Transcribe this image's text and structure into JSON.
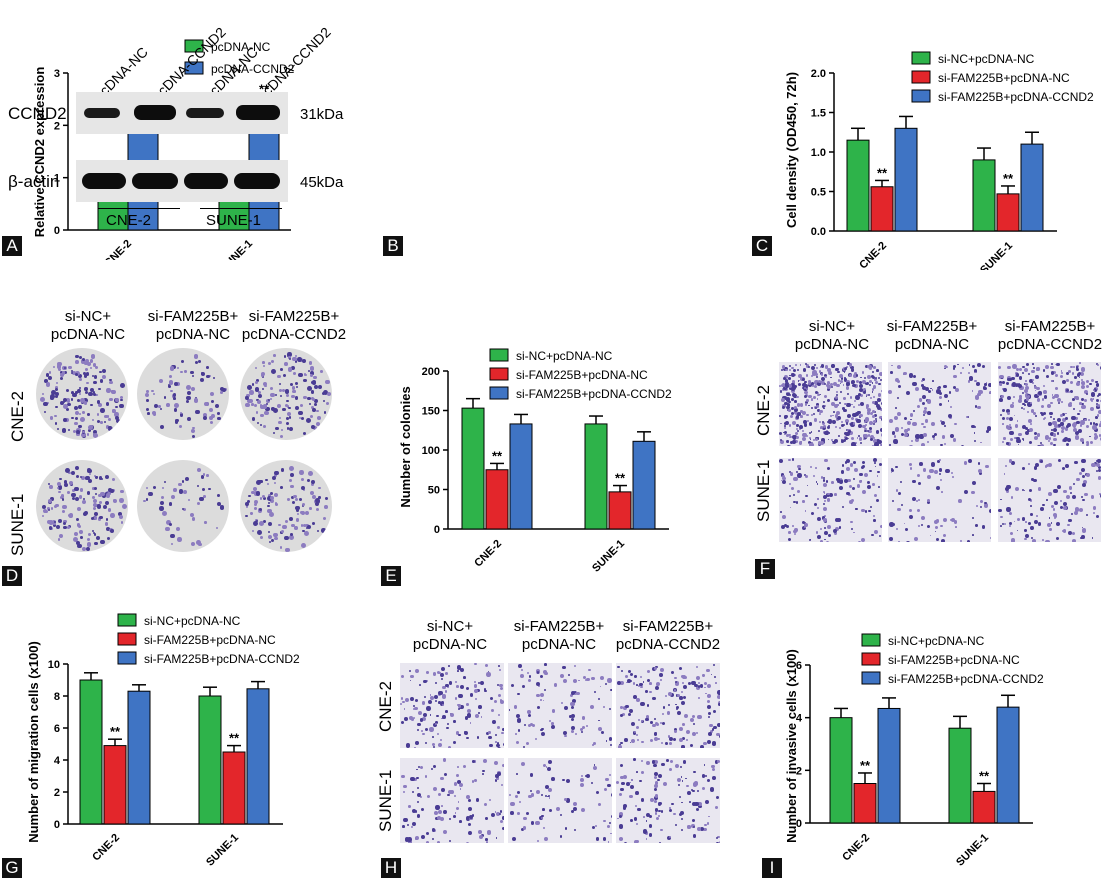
{
  "panel_labels": [
    "A",
    "B",
    "C",
    "D",
    "E",
    "F",
    "G",
    "H",
    "I"
  ],
  "colors": {
    "green": "#2eb34a",
    "blue": "#3f74c4",
    "red": "#e3262b",
    "stain": "#4a3c94",
    "stain_light": "#8c7cc0"
  },
  "chart_data": [
    {
      "type": "bar",
      "panel": "A",
      "categories": [
        "CNE-2",
        "SUNE-1"
      ],
      "series": [
        {
          "name": "pcDNA-NC",
          "values": [
            1.0,
            1.0
          ],
          "errors": [
            0.13,
            0.1
          ]
        },
        {
          "name": "pcDNA-CCND2",
          "values": [
            1.93,
            2.38
          ],
          "errors": [
            0.15,
            0.17
          ]
        }
      ],
      "ylabel": "Relative CCND2 expression",
      "ylim": [
        0,
        3
      ],
      "yticks": [
        "0",
        "1",
        "2",
        "3"
      ],
      "annotations": [
        "**",
        "**"
      ]
    },
    {
      "type": "bar",
      "panel": "C",
      "categories": [
        "CNE-2",
        "SUNE-1"
      ],
      "series": [
        {
          "name": "si-NC+pcDNA-NC",
          "values": [
            1.15,
            0.9
          ],
          "errors": [
            0.15,
            0.15
          ]
        },
        {
          "name": "si-FAM225B+pcDNA-NC",
          "values": [
            0.56,
            0.47
          ],
          "errors": [
            0.08,
            0.1
          ]
        },
        {
          "name": "si-FAM225B+pcDNA-CCND2",
          "values": [
            1.3,
            1.1
          ],
          "errors": [
            0.15,
            0.15
          ]
        }
      ],
      "ylabel": "Cell density (OD450, 72h)",
      "ylim": [
        0,
        2.0
      ],
      "yticks": [
        "0.0",
        "0.5",
        "1.0",
        "1.5",
        "2.0"
      ],
      "annotations": [
        "**",
        "**"
      ]
    },
    {
      "type": "bar",
      "panel": "E",
      "categories": [
        "CNE-2",
        "SUNE-1"
      ],
      "series": [
        {
          "name": "si-NC+pcDNA-NC",
          "values": [
            153,
            133
          ],
          "errors": [
            12,
            10
          ]
        },
        {
          "name": "si-FAM225B+pcDNA-NC",
          "values": [
            75,
            47
          ],
          "errors": [
            8,
            8
          ]
        },
        {
          "name": "si-FAM225B+pcDNA-CCND2",
          "values": [
            133,
            111
          ],
          "errors": [
            12,
            12
          ]
        }
      ],
      "ylabel": "Number of colonies",
      "ylim": [
        0,
        200
      ],
      "yticks": [
        "0",
        "50",
        "100",
        "150",
        "200"
      ],
      "annotations": [
        "**",
        "**"
      ]
    },
    {
      "type": "bar",
      "panel": "G",
      "categories": [
        "CNE-2",
        "SUNE-1"
      ],
      "series": [
        {
          "name": "si-NC+pcDNA-NC",
          "values": [
            9.0,
            8.0
          ],
          "errors": [
            0.45,
            0.55
          ]
        },
        {
          "name": "si-FAM225B+pcDNA-NC",
          "values": [
            4.9,
            4.5
          ],
          "errors": [
            0.4,
            0.4
          ]
        },
        {
          "name": "si-FAM225B+pcDNA-CCND2",
          "values": [
            8.3,
            8.45
          ],
          "errors": [
            0.4,
            0.45
          ]
        }
      ],
      "ylabel": "Number of migration cells (x100)",
      "ylim": [
        0,
        10
      ],
      "yticks": [
        "0",
        "2",
        "4",
        "6",
        "8",
        "10"
      ],
      "annotations": [
        "**",
        "**"
      ]
    },
    {
      "type": "bar",
      "panel": "I",
      "categories": [
        "CNE-2",
        "SUNE-1"
      ],
      "series": [
        {
          "name": "si-NC+pcDNA-NC",
          "values": [
            4.0,
            3.6
          ],
          "errors": [
            0.35,
            0.45
          ]
        },
        {
          "name": "si-FAM225B+pcDNA-NC",
          "values": [
            1.5,
            1.2
          ],
          "errors": [
            0.4,
            0.3
          ]
        },
        {
          "name": "si-FAM225B+pcDNA-CCND2",
          "values": [
            4.35,
            4.4
          ],
          "errors": [
            0.4,
            0.45
          ]
        }
      ],
      "ylabel": "Number of invasive cells (x100)",
      "ylim": [
        0,
        6
      ],
      "yticks": [
        "0",
        "2",
        "4",
        "6"
      ],
      "annotations": [
        "**",
        "**"
      ]
    }
  ],
  "blot": {
    "lanes": [
      "pcDNA-NC",
      "pcDNA-CCND2",
      "pcDNA-NC",
      "pcDNA-CCND2"
    ],
    "rows": [
      {
        "protein": "CCND2",
        "size": "31kDa"
      },
      {
        "protein": "β-actin",
        "size": "45kDa"
      }
    ],
    "groups": [
      "CNE-2",
      "SUNE-1"
    ]
  },
  "colony": {
    "headers": [
      "si-NC+\npcDNA-NC",
      "si-FAM225B+\npcDNA-NC",
      "si-FAM225B+\npcDNA-CCND2"
    ],
    "rows": [
      "CNE-2",
      "SUNE-1"
    ]
  },
  "transwell_F": {
    "headers": [
      "si-NC+\npcDNA-NC",
      "si-FAM225B+\npcDNA-NC",
      "si-FAM225B+\npcDNA-CCND2"
    ],
    "rows": [
      "CNE-2",
      "SUNE-1"
    ]
  },
  "transwell_H": {
    "headers": [
      "si-NC+\npcDNA-NC",
      "si-FAM225B+\npcDNA-NC",
      "si-FAM225B+\npcDNA-CCND2"
    ],
    "rows": [
      "CNE-2",
      "SUNE-1"
    ]
  }
}
